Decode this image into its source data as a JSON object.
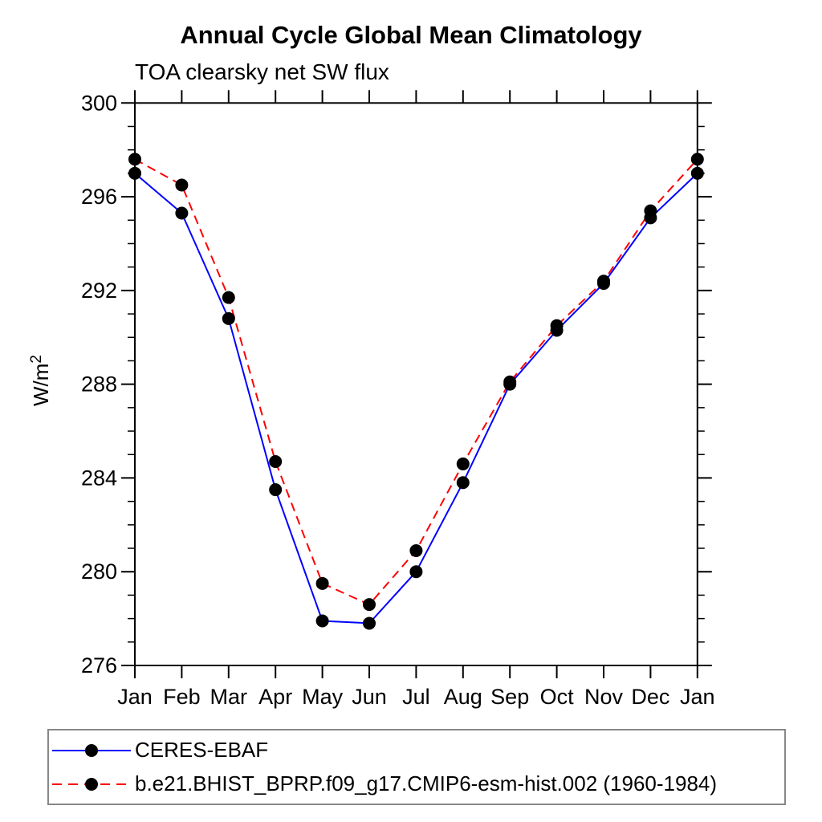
{
  "chart_data": {
    "type": "line",
    "title": "Annual Cycle Global Mean Climatology",
    "subtitle": "TOA clearsky net SW flux",
    "ylabel": "W/m²",
    "categories": [
      "Jan",
      "Feb",
      "Mar",
      "Apr",
      "May",
      "Jun",
      "Jul",
      "Aug",
      "Sep",
      "Oct",
      "Nov",
      "Dec",
      "Jan"
    ],
    "ylim": [
      276,
      300
    ],
    "yticks_major": [
      300,
      296,
      292,
      288,
      284,
      280,
      276
    ],
    "ytick_minor_step": 1,
    "grid": "off",
    "legend_position": "bottom",
    "axis_color": "#000000",
    "marker_color": "#000000",
    "series": [
      {
        "name": "CERES-EBAF",
        "line_color": "#0000ff",
        "line_style": "solid",
        "values": [
          297.0,
          295.3,
          290.8,
          283.5,
          277.9,
          277.8,
          280.0,
          283.8,
          288.0,
          290.3,
          292.3,
          295.1,
          297.0
        ]
      },
      {
        "name": "b.e21.BHIST_BPRP.f09_g17.CMIP6-esm-hist.002 (1960-1984)",
        "line_color": "#ff0000",
        "line_style": "dashed",
        "values": [
          297.6,
          296.5,
          291.7,
          284.7,
          279.5,
          278.6,
          280.9,
          284.6,
          288.1,
          290.5,
          292.4,
          295.4,
          297.6
        ]
      }
    ]
  }
}
